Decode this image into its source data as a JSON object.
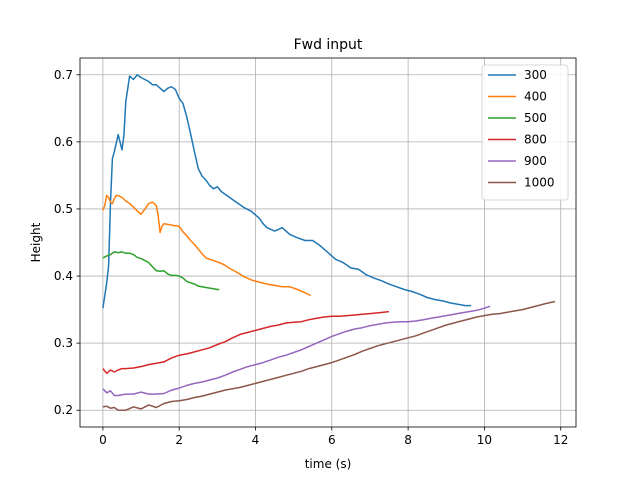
{
  "chart_data": {
    "type": "line",
    "title": "Fwd input",
    "xlabel": "time (s)",
    "ylabel": "Height",
    "xlim": [
      -0.6,
      12.4
    ],
    "ylim": [
      0.175,
      0.725
    ],
    "xticks": [
      0,
      2,
      4,
      6,
      8,
      10,
      12
    ],
    "yticks": [
      0.2,
      0.3,
      0.4,
      0.5,
      0.6,
      0.7
    ],
    "grid": true,
    "legend_position": "top-right",
    "series": [
      {
        "name": "300",
        "color": "#1f77b4",
        "x": [
          0,
          0.1,
          0.15,
          0.2,
          0.25,
          0.3,
          0.4,
          0.5,
          0.55,
          0.6,
          0.7,
          0.8,
          0.9,
          1.0,
          1.1,
          1.2,
          1.3,
          1.4,
          1.5,
          1.6,
          1.7,
          1.8,
          1.9,
          2.0,
          2.1,
          2.2,
          2.3,
          2.4,
          2.5,
          2.6,
          2.7,
          2.8,
          2.9,
          3.0,
          3.1,
          3.3,
          3.5,
          3.7,
          3.9,
          4.1,
          4.2,
          4.3,
          4.5,
          4.7,
          4.9,
          5.1,
          5.3,
          5.5,
          5.7,
          5.9,
          6.1,
          6.3,
          6.5,
          6.7,
          6.9,
          7.1,
          7.3,
          7.5,
          7.7,
          7.9,
          8.1,
          8.3,
          8.5,
          8.7,
          8.9,
          9.1,
          9.3,
          9.5,
          9.65
        ],
        "y": [
          0.352,
          0.39,
          0.415,
          0.51,
          0.575,
          0.585,
          0.611,
          0.588,
          0.61,
          0.66,
          0.698,
          0.693,
          0.7,
          0.696,
          0.693,
          0.69,
          0.685,
          0.685,
          0.68,
          0.675,
          0.68,
          0.682,
          0.678,
          0.665,
          0.657,
          0.637,
          0.612,
          0.585,
          0.56,
          0.549,
          0.543,
          0.535,
          0.53,
          0.533,
          0.526,
          0.518,
          0.51,
          0.502,
          0.496,
          0.486,
          0.478,
          0.472,
          0.467,
          0.472,
          0.462,
          0.457,
          0.453,
          0.453,
          0.445,
          0.435,
          0.425,
          0.42,
          0.412,
          0.41,
          0.402,
          0.397,
          0.393,
          0.388,
          0.384,
          0.38,
          0.377,
          0.373,
          0.368,
          0.365,
          0.363,
          0.36,
          0.358,
          0.356,
          0.356
        ]
      },
      {
        "name": "400",
        "color": "#ff7f0e",
        "x": [
          0,
          0.05,
          0.1,
          0.15,
          0.2,
          0.25,
          0.3,
          0.35,
          0.4,
          0.5,
          0.6,
          0.7,
          0.8,
          0.9,
          1.0,
          1.1,
          1.2,
          1.3,
          1.4,
          1.45,
          1.5,
          1.55,
          1.6,
          1.7,
          1.8,
          1.9,
          2.0,
          2.1,
          2.2,
          2.3,
          2.4,
          2.5,
          2.6,
          2.7,
          2.8,
          2.9,
          3.0,
          3.1,
          3.2,
          3.3,
          3.5,
          3.7,
          3.9,
          4.1,
          4.3,
          4.5,
          4.7,
          4.9,
          5.1,
          5.3,
          5.45
        ],
        "y": [
          0.498,
          0.505,
          0.52,
          0.517,
          0.51,
          0.508,
          0.515,
          0.52,
          0.52,
          0.517,
          0.512,
          0.508,
          0.503,
          0.497,
          0.492,
          0.5,
          0.508,
          0.51,
          0.505,
          0.49,
          0.465,
          0.474,
          0.478,
          0.477,
          0.476,
          0.475,
          0.474,
          0.466,
          0.46,
          0.453,
          0.447,
          0.44,
          0.433,
          0.427,
          0.425,
          0.423,
          0.421,
          0.419,
          0.416,
          0.412,
          0.406,
          0.399,
          0.394,
          0.391,
          0.388,
          0.386,
          0.384,
          0.384,
          0.38,
          0.375,
          0.371
        ]
      },
      {
        "name": "500",
        "color": "#2ca02c",
        "x": [
          0,
          0.1,
          0.2,
          0.3,
          0.4,
          0.5,
          0.6,
          0.7,
          0.8,
          0.9,
          1.0,
          1.1,
          1.2,
          1.3,
          1.4,
          1.5,
          1.6,
          1.7,
          1.8,
          1.9,
          2.0,
          2.1,
          2.2,
          2.3,
          2.4,
          2.5,
          2.6,
          2.7,
          2.8,
          2.9,
          3.0,
          3.05
        ],
        "y": [
          0.427,
          0.43,
          0.432,
          0.436,
          0.435,
          0.436,
          0.434,
          0.434,
          0.432,
          0.428,
          0.426,
          0.423,
          0.42,
          0.414,
          0.408,
          0.407,
          0.408,
          0.403,
          0.401,
          0.401,
          0.4,
          0.397,
          0.392,
          0.39,
          0.388,
          0.385,
          0.384,
          0.383,
          0.382,
          0.381,
          0.38,
          0.38
        ]
      },
      {
        "name": "800",
        "color": "#d62728",
        "x": [
          0,
          0.1,
          0.2,
          0.3,
          0.4,
          0.5,
          0.6,
          0.8,
          1.0,
          1.2,
          1.4,
          1.6,
          1.8,
          2.0,
          2.2,
          2.4,
          2.6,
          2.8,
          3.0,
          3.2,
          3.4,
          3.6,
          3.8,
          4.0,
          4.2,
          4.4,
          4.6,
          4.8,
          5.0,
          5.2,
          5.4,
          5.6,
          5.8,
          6.0,
          6.2,
          6.4,
          6.6,
          6.8,
          7.0,
          7.2,
          7.5
        ],
        "y": [
          0.262,
          0.255,
          0.26,
          0.257,
          0.26,
          0.262,
          0.262,
          0.263,
          0.265,
          0.268,
          0.27,
          0.272,
          0.278,
          0.282,
          0.284,
          0.287,
          0.29,
          0.293,
          0.298,
          0.302,
          0.308,
          0.313,
          0.316,
          0.319,
          0.322,
          0.325,
          0.327,
          0.33,
          0.331,
          0.332,
          0.335,
          0.337,
          0.339,
          0.34,
          0.34,
          0.341,
          0.342,
          0.343,
          0.344,
          0.345,
          0.347
        ]
      },
      {
        "name": "900",
        "color": "#9467bd",
        "x": [
          0,
          0.1,
          0.2,
          0.3,
          0.4,
          0.6,
          0.8,
          1.0,
          1.2,
          1.4,
          1.6,
          1.8,
          2.0,
          2.2,
          2.4,
          2.6,
          2.8,
          3.0,
          3.2,
          3.4,
          3.6,
          3.8,
          4.0,
          4.2,
          4.4,
          4.6,
          4.8,
          5.0,
          5.2,
          5.4,
          5.6,
          5.8,
          6.0,
          6.2,
          6.4,
          6.6,
          6.8,
          7.0,
          7.2,
          7.4,
          7.6,
          7.8,
          8.0,
          8.2,
          8.4,
          8.6,
          8.8,
          9.0,
          9.2,
          9.4,
          9.6,
          9.8,
          10.0,
          10.15
        ],
        "y": [
          0.232,
          0.226,
          0.229,
          0.222,
          0.222,
          0.224,
          0.224,
          0.227,
          0.224,
          0.224,
          0.225,
          0.23,
          0.233,
          0.237,
          0.24,
          0.242,
          0.245,
          0.248,
          0.252,
          0.257,
          0.261,
          0.265,
          0.268,
          0.271,
          0.275,
          0.279,
          0.282,
          0.286,
          0.29,
          0.295,
          0.3,
          0.305,
          0.31,
          0.314,
          0.318,
          0.321,
          0.323,
          0.326,
          0.328,
          0.33,
          0.331,
          0.332,
          0.332,
          0.333,
          0.335,
          0.337,
          0.339,
          0.341,
          0.343,
          0.345,
          0.347,
          0.349,
          0.352,
          0.355
        ]
      },
      {
        "name": "1000",
        "color": "#8c564b",
        "x": [
          0,
          0.1,
          0.2,
          0.3,
          0.4,
          0.6,
          0.8,
          1.0,
          1.2,
          1.4,
          1.6,
          1.8,
          2.0,
          2.2,
          2.4,
          2.6,
          2.8,
          3.0,
          3.2,
          3.4,
          3.6,
          3.8,
          4.0,
          4.2,
          4.4,
          4.6,
          4.8,
          5.0,
          5.2,
          5.4,
          5.6,
          5.8,
          6.0,
          6.2,
          6.4,
          6.6,
          6.8,
          7.0,
          7.2,
          7.4,
          7.6,
          7.8,
          8.0,
          8.2,
          8.4,
          8.6,
          8.8,
          9.0,
          9.2,
          9.4,
          9.6,
          9.8,
          10.0,
          10.2,
          10.4,
          10.6,
          10.8,
          11.0,
          11.2,
          11.4,
          11.6,
          11.85
        ],
        "y": [
          0.205,
          0.206,
          0.203,
          0.204,
          0.2,
          0.2,
          0.205,
          0.202,
          0.208,
          0.204,
          0.21,
          0.213,
          0.214,
          0.216,
          0.219,
          0.221,
          0.224,
          0.227,
          0.23,
          0.232,
          0.234,
          0.237,
          0.24,
          0.243,
          0.246,
          0.249,
          0.252,
          0.255,
          0.258,
          0.262,
          0.265,
          0.268,
          0.271,
          0.275,
          0.279,
          0.283,
          0.288,
          0.292,
          0.296,
          0.299,
          0.302,
          0.305,
          0.308,
          0.311,
          0.315,
          0.319,
          0.323,
          0.327,
          0.33,
          0.333,
          0.336,
          0.339,
          0.341,
          0.343,
          0.344,
          0.346,
          0.348,
          0.35,
          0.353,
          0.356,
          0.359,
          0.362
        ]
      }
    ]
  }
}
